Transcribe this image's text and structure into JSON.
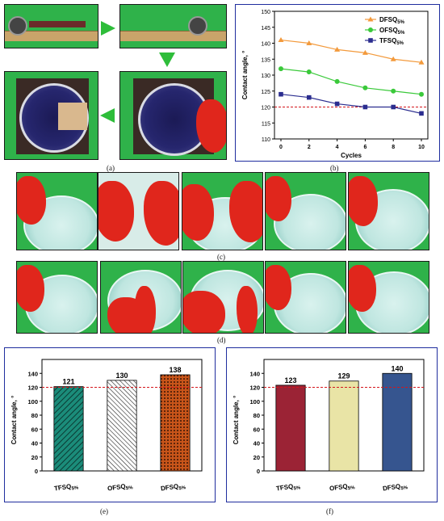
{
  "labels": {
    "a": "(a)",
    "b": "(b)",
    "c": "(c)",
    "d": "(d)",
    "e": "(e)",
    "f": "(f)"
  },
  "chart_data": [
    {
      "id": "b",
      "type": "line",
      "ylabel": "Contact angle, °",
      "xlabel": "Cycles",
      "x": [
        0,
        2,
        4,
        6,
        8,
        10
      ],
      "ylim": [
        110,
        150
      ],
      "yticks": [
        110,
        115,
        120,
        125,
        130,
        135,
        140,
        145,
        150
      ],
      "xticks": [
        0,
        2,
        4,
        6,
        8,
        10
      ],
      "reference_line": 120,
      "legend_position": "top-right",
      "series": [
        {
          "name": "DFSQ",
          "sub": "5%",
          "color": "#f39a3c",
          "marker": "triangle",
          "values": [
            141,
            140,
            138,
            137,
            135,
            134
          ]
        },
        {
          "name": "OFSQ",
          "sub": "5%",
          "color": "#3ac93a",
          "marker": "circle",
          "values": [
            132,
            131,
            128,
            126,
            125,
            124
          ]
        },
        {
          "name": "TFSQ",
          "sub": "5%",
          "color": "#2b2d8f",
          "marker": "square",
          "values": [
            124,
            123,
            121,
            120,
            120,
            118
          ]
        }
      ]
    },
    {
      "id": "e",
      "type": "bar",
      "ylabel": "Contact angle, °",
      "ylim": [
        0,
        160
      ],
      "yticks": [
        0,
        20,
        40,
        60,
        80,
        100,
        120,
        140
      ],
      "reference_line": 120,
      "categories": [
        {
          "name": "TFSQ",
          "sub": "5%"
        },
        {
          "name": "OFSQ",
          "sub": "5%"
        },
        {
          "name": "DFSQ",
          "sub": "5%"
        }
      ],
      "values": [
        121,
        130,
        138
      ],
      "value_labels": [
        "121",
        "130",
        "138"
      ],
      "colors": [
        "#1b8c7a",
        "#ffffff",
        "#c8551a"
      ]
    },
    {
      "id": "f",
      "type": "bar",
      "ylabel": "Contact angle, °",
      "ylim": [
        0,
        160
      ],
      "yticks": [
        0,
        20,
        40,
        60,
        80,
        100,
        120,
        140
      ],
      "reference_line": 120,
      "categories": [
        {
          "name": "TFSQ",
          "sub": "5%"
        },
        {
          "name": "OFSQ",
          "sub": "5%"
        },
        {
          "name": "DFSQ",
          "sub": "5%"
        }
      ],
      "values": [
        123,
        129,
        140
      ],
      "value_labels": [
        "123",
        "129",
        "140"
      ],
      "colors": [
        "#9b2335",
        "#e9e4a6",
        "#36558f"
      ]
    }
  ]
}
